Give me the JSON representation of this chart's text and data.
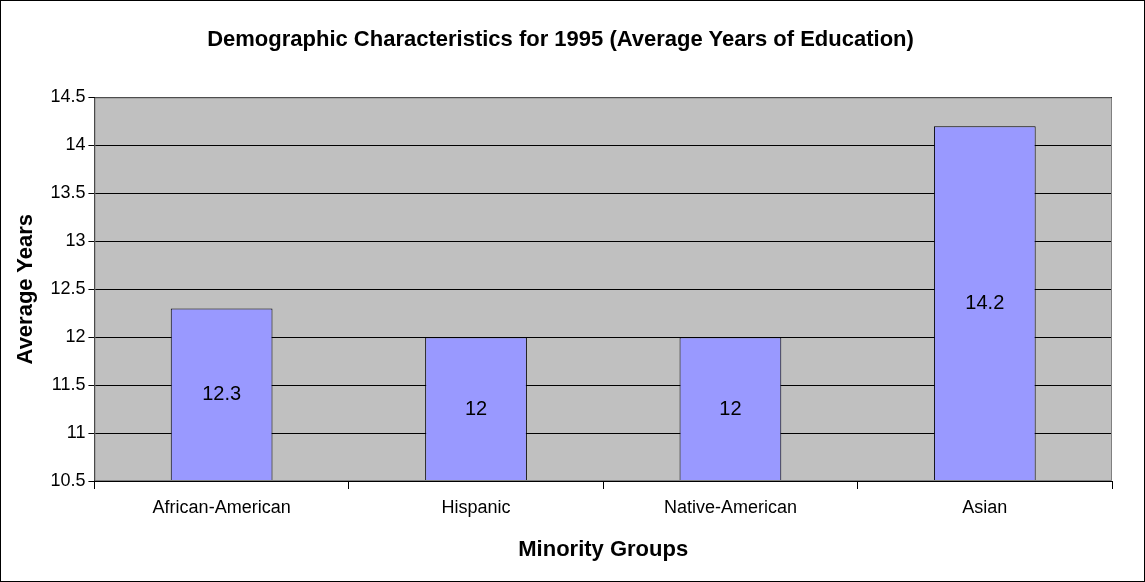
{
  "chart_data": {
    "type": "bar",
    "title": "Demographic Characteristics for 1995 (Average Years of Education)",
    "xlabel": "Minority Groups",
    "ylabel": "Average Years",
    "categories": [
      "African-American",
      "Hispanic",
      "Native-American",
      "Asian"
    ],
    "values": [
      12.3,
      12,
      12,
      14.2
    ],
    "color": "#9999ff",
    "ylim": [
      10.5,
      14.5
    ],
    "yticks": [
      10.5,
      11,
      11.5,
      12,
      12.5,
      13,
      13.5,
      14,
      14.5
    ],
    "grid": "y",
    "legend": false,
    "data_labels": true
  }
}
